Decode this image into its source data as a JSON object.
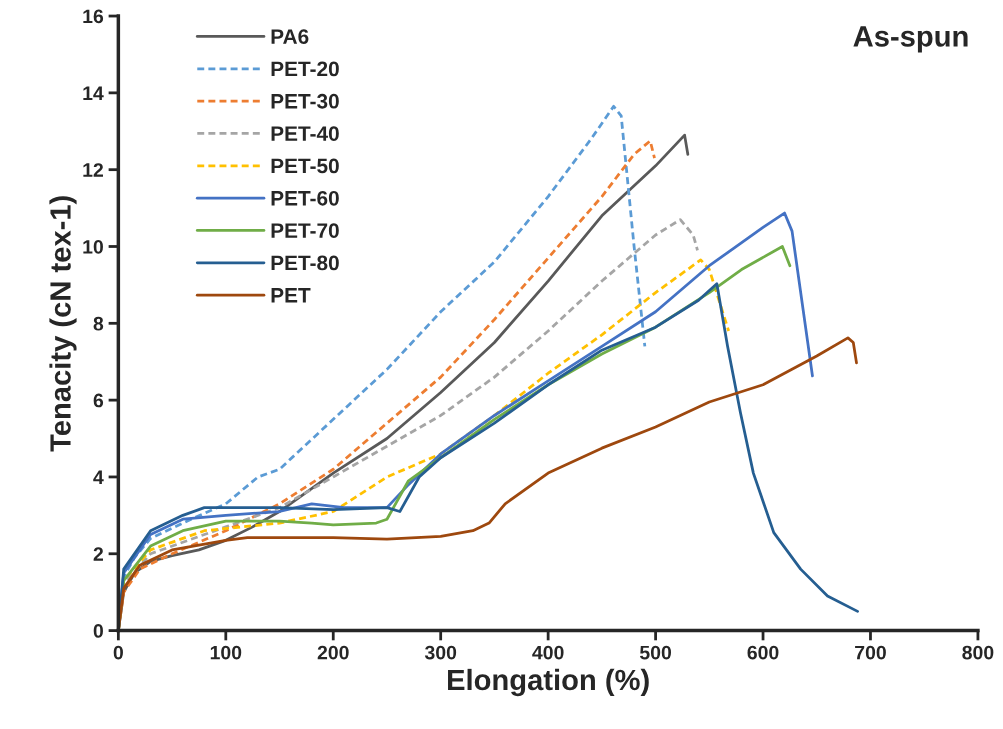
{
  "chart_data": {
    "type": "line",
    "xlabel": "Elongation (%)",
    "ylabel": "Tenacity (cN tex-1)",
    "annotations": [
      "As-spun"
    ],
    "xlim": [
      0,
      800
    ],
    "xticks": [
      0,
      100,
      200,
      300,
      400,
      500,
      600,
      700,
      800
    ],
    "ylim": [
      0,
      16
    ],
    "yticks": [
      0,
      2,
      4,
      6,
      8,
      10,
      12,
      14,
      16
    ],
    "grid": false,
    "legend": "top left",
    "marker": "none",
    "series": [
      {
        "name": "PA6",
        "color": "#595959",
        "line_style": "solid",
        "x": [
          0,
          5,
          15,
          30,
          50,
          75,
          100,
          125,
          150,
          200,
          250,
          300,
          350,
          400,
          450,
          500,
          527,
          530
        ],
        "values": [
          0,
          1.0,
          1.5,
          1.8,
          1.95,
          2.1,
          2.35,
          2.7,
          3.1,
          4.1,
          5.0,
          6.2,
          7.5,
          9.1,
          10.8,
          12.1,
          12.9,
          12.4
        ]
      },
      {
        "name": "PET-20",
        "color": "#5b9bd5",
        "line_style": "dashed",
        "x": [
          0,
          5,
          15,
          30,
          60,
          100,
          130,
          150,
          200,
          250,
          300,
          350,
          400,
          440,
          461,
          468,
          480,
          490
        ],
        "values": [
          0,
          1.4,
          1.9,
          2.4,
          2.8,
          3.3,
          4.0,
          4.2,
          5.5,
          6.8,
          8.3,
          9.6,
          11.3,
          12.8,
          13.65,
          13.4,
          10.0,
          7.4
        ]
      },
      {
        "name": "PET-30",
        "color": "#ed7d31",
        "line_style": "dashed",
        "x": [
          0,
          5,
          20,
          50,
          100,
          150,
          200,
          250,
          300,
          350,
          400,
          450,
          480,
          495,
          499
        ],
        "values": [
          0,
          1.0,
          1.6,
          2.0,
          2.6,
          3.3,
          4.2,
          5.4,
          6.6,
          8.1,
          9.7,
          11.3,
          12.4,
          12.75,
          12.3
        ]
      },
      {
        "name": "PET-40",
        "color": "#a5a5a5",
        "line_style": "dashed",
        "x": [
          0,
          5,
          30,
          100,
          150,
          200,
          250,
          300,
          350,
          400,
          450,
          500,
          523,
          535,
          539
        ],
        "values": [
          0,
          1.2,
          2.0,
          2.7,
          3.2,
          4.0,
          4.8,
          5.6,
          6.6,
          7.8,
          9.1,
          10.3,
          10.7,
          10.3,
          9.9
        ]
      },
      {
        "name": "PET-50",
        "color": "#ffc000",
        "line_style": "dashed",
        "x": [
          0,
          5,
          30,
          80,
          150,
          200,
          250,
          300,
          350,
          400,
          450,
          500,
          542,
          550,
          568
        ],
        "values": [
          0,
          1.3,
          2.1,
          2.6,
          2.8,
          3.1,
          4.0,
          4.6,
          5.6,
          6.7,
          7.7,
          8.8,
          9.65,
          9.4,
          7.8
        ]
      },
      {
        "name": "PET-60",
        "color": "#4472c4",
        "line_style": "solid",
        "x": [
          0,
          5,
          30,
          60,
          100,
          150,
          180,
          210,
          250,
          270,
          300,
          350,
          400,
          450,
          500,
          550,
          570,
          600,
          620,
          627,
          646
        ],
        "values": [
          0,
          1.5,
          2.5,
          2.9,
          3.0,
          3.1,
          3.3,
          3.2,
          3.2,
          3.8,
          4.6,
          5.6,
          6.5,
          7.4,
          8.3,
          9.5,
          9.9,
          10.5,
          10.87,
          10.4,
          6.63
        ]
      },
      {
        "name": "PET-70",
        "color": "#70ad47",
        "line_style": "solid",
        "x": [
          0,
          5,
          30,
          60,
          100,
          150,
          180,
          200,
          240,
          250,
          270,
          300,
          350,
          400,
          450,
          500,
          550,
          580,
          618,
          625
        ],
        "values": [
          0,
          1.3,
          2.2,
          2.6,
          2.85,
          2.85,
          2.8,
          2.75,
          2.8,
          2.9,
          3.9,
          4.5,
          5.5,
          6.4,
          7.2,
          7.9,
          8.8,
          9.4,
          10.0,
          9.5
        ]
      },
      {
        "name": "PET-80",
        "color": "#255e91",
        "line_style": "solid",
        "x": [
          0,
          5,
          30,
          60,
          80,
          120,
          150,
          200,
          250,
          262,
          280,
          300,
          350,
          400,
          450,
          500,
          540,
          557,
          567,
          579,
          591,
          610,
          635,
          660,
          688
        ],
        "values": [
          0,
          1.6,
          2.6,
          3.0,
          3.2,
          3.2,
          3.2,
          3.15,
          3.2,
          3.1,
          4.0,
          4.5,
          5.4,
          6.4,
          7.3,
          7.9,
          8.6,
          9.03,
          7.4,
          5.67,
          4.1,
          2.55,
          1.6,
          0.9,
          0.5
        ]
      },
      {
        "name": "PET",
        "color": "#9e480e",
        "line_style": "solid",
        "x": [
          0,
          5,
          20,
          50,
          100,
          120,
          200,
          250,
          300,
          330,
          345,
          360,
          400,
          450,
          500,
          550,
          600,
          650,
          679,
          684,
          687
        ],
        "values": [
          0,
          1.1,
          1.7,
          2.1,
          2.35,
          2.42,
          2.42,
          2.38,
          2.45,
          2.6,
          2.8,
          3.3,
          4.1,
          4.75,
          5.3,
          5.95,
          6.4,
          7.15,
          7.62,
          7.5,
          6.97
        ]
      }
    ]
  }
}
